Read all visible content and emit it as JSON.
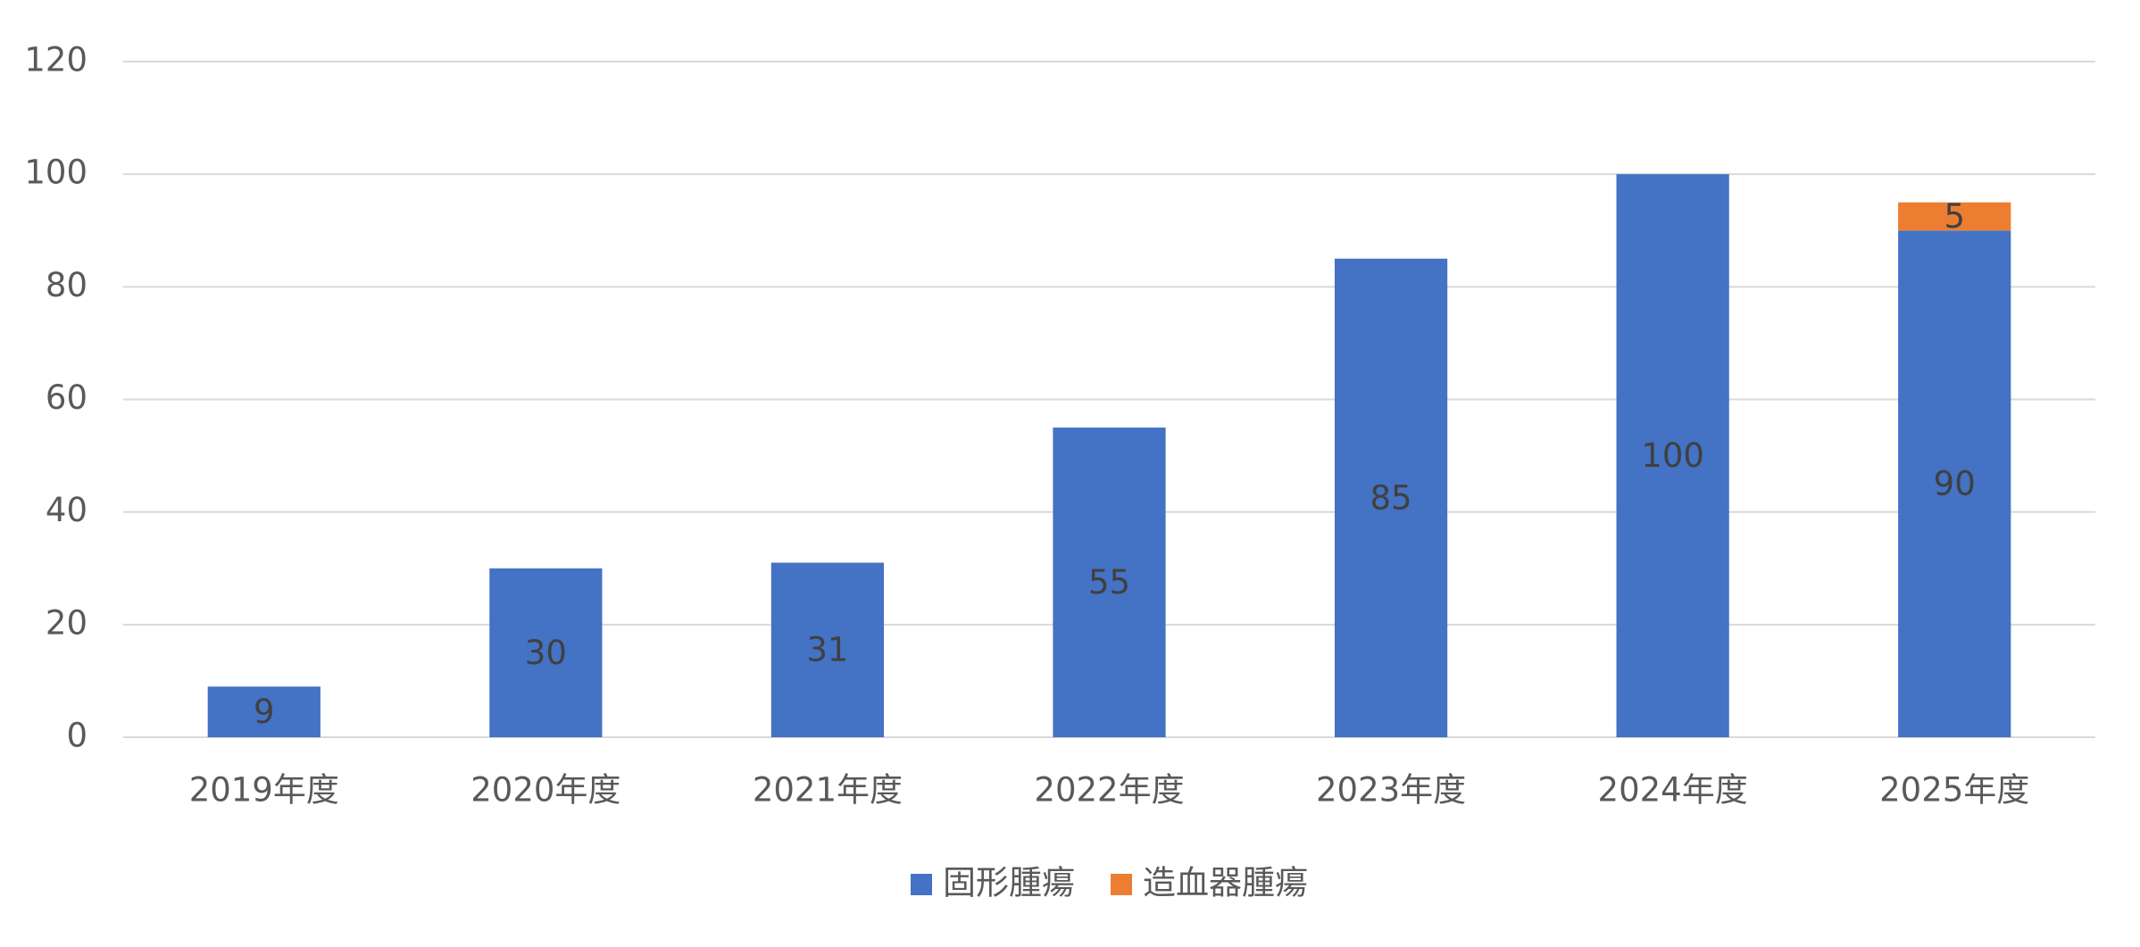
{
  "chart_data": {
    "type": "stacked_bar",
    "categories": [
      "2019年度",
      "2020年度",
      "2021年度",
      "2022年度",
      "2023年度",
      "2024年度",
      "2025年度"
    ],
    "series": [
      {
        "name": "固形腫瘍",
        "color": "#4472c4",
        "values": [
          9,
          30,
          31,
          55,
          85,
          100,
          90
        ]
      },
      {
        "name": "造血器腫瘍",
        "color": "#ed7d31",
        "values": [
          null,
          null,
          null,
          null,
          null,
          null,
          5
        ]
      }
    ],
    "ylim": [
      0,
      120
    ],
    "yticks": [
      0,
      20,
      40,
      60,
      80,
      100,
      120
    ],
    "grid": true,
    "legend": "bottom"
  }
}
